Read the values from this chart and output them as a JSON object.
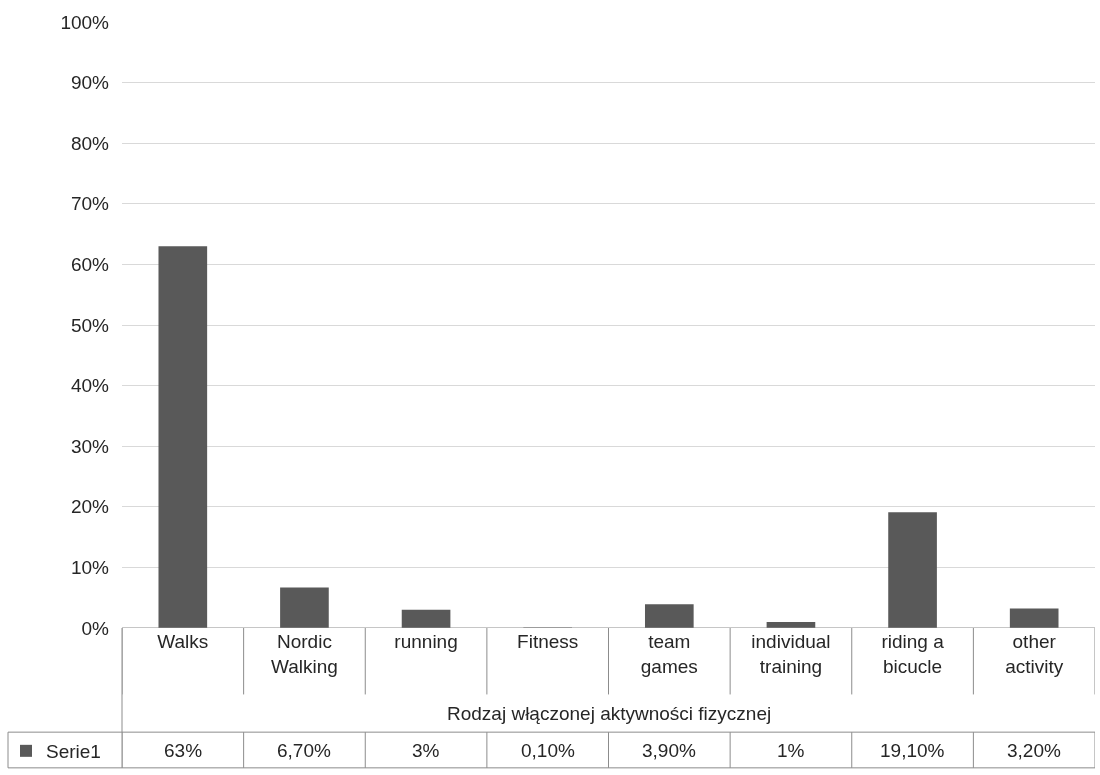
{
  "chart_data": {
    "type": "bar",
    "xlabel": "Rodzaj włączonej aktywności fizycznej",
    "categories": [
      "Walks",
      "Nordic Walking",
      "running",
      "Fitness",
      "team games",
      "individual training",
      "riding a bicucle",
      "other activity"
    ],
    "series": [
      {
        "name": "Serie1",
        "color": "#595959",
        "values": [
          63,
          6.7,
          3,
          0.1,
          3.9,
          1,
          19.1,
          3.2
        ],
        "value_labels": [
          "63%",
          "6,70%",
          "3%",
          "0,10%",
          "3,90%",
          "1%",
          "19,10%",
          "3,20%"
        ]
      }
    ],
    "ylim": [
      0,
      100
    ],
    "yticks": [
      {
        "value": 0,
        "label": "0%"
      },
      {
        "value": 10,
        "label": "10%"
      },
      {
        "value": 20,
        "label": "20%"
      },
      {
        "value": 30,
        "label": "30%"
      },
      {
        "value": 40,
        "label": "40%"
      },
      {
        "value": 50,
        "label": "50%"
      },
      {
        "value": 60,
        "label": "60%"
      },
      {
        "value": 70,
        "label": "70%"
      },
      {
        "value": 80,
        "label": "80%"
      },
      {
        "value": 90,
        "label": "90%"
      },
      {
        "value": 100,
        "label": "100%"
      }
    ],
    "grid": "y",
    "legend": "bottom left"
  }
}
